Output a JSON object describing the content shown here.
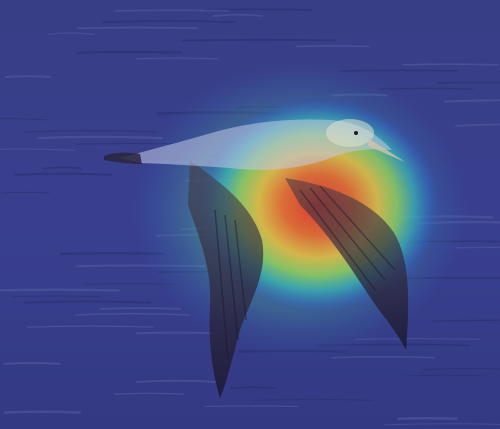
{
  "image": {
    "subject": "albatross-in-flight",
    "overlay": "attention-heatmap",
    "colors": {
      "sea_dark": "#2f3478",
      "sea_mid": "#3c4290",
      "sea_light": "#5a60a8",
      "heat_hot": "#e0302a",
      "heat_warm": "#f5a23a",
      "heat_mid": "#f0e24a",
      "heat_cool": "#3ec2a0",
      "heat_cold": "#2f6fd0",
      "bird_white": "#dfe4f4",
      "bird_dark": "#2a2230"
    }
  }
}
